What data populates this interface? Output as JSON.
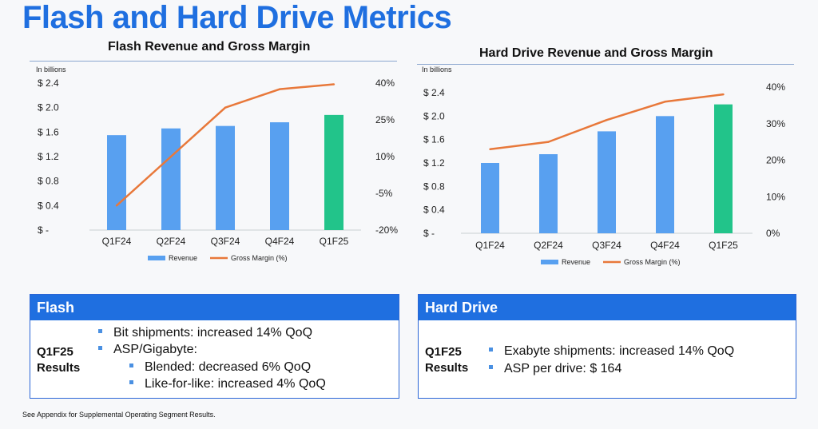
{
  "page_title": "Flash and Hard Drive Metrics",
  "footnote": "See Appendix for Supplemental Operating Segment Results.",
  "colors": {
    "revenue": "#58a0f0",
    "latest": "#22c48a",
    "margin": "#e8783a",
    "accent": "#1f6fe0"
  },
  "chart_data": [
    {
      "type": "bar",
      "title": "Flash Revenue and Gross Margin",
      "units_label": "In billions",
      "categories": [
        "Q1F24",
        "Q2F24",
        "Q3F24",
        "Q4F24",
        "Q1F25"
      ],
      "y_ticks": [
        "$ -",
        "$ 0.4",
        "$ 0.8",
        "$ 1.2",
        "$ 1.6",
        "$ 2.0",
        "$ 2.4"
      ],
      "y2_ticks": [
        "-20%",
        "-5%",
        "10%",
        "25%",
        "40%"
      ],
      "ylim": [
        0,
        2.4
      ],
      "y2lim": [
        -20,
        40
      ],
      "series": [
        {
          "name": "Revenue",
          "type": "bar",
          "values": [
            1.55,
            1.66,
            1.7,
            1.76,
            1.88
          ]
        },
        {
          "name": "Gross Margin (%)",
          "type": "line",
          "axis": "secondary",
          "values": [
            -10,
            10,
            30,
            37.5,
            39.5
          ]
        }
      ],
      "legend": [
        "Revenue",
        "Gross Margin (%)"
      ]
    },
    {
      "type": "bar",
      "title": "Hard Drive Revenue and Gross Margin",
      "units_label": "In billions",
      "categories": [
        "Q1F24",
        "Q2F24",
        "Q3F24",
        "Q4F24",
        "Q1F25"
      ],
      "y_ticks": [
        "$ -",
        "$ 0.4",
        "$ 0.8",
        "$ 1.2",
        "$ 1.6",
        "$ 2.0",
        "$ 2.4"
      ],
      "y2_ticks": [
        "0%",
        "10%",
        "20%",
        "30%",
        "40%"
      ],
      "ylim": [
        0,
        2.6
      ],
      "y2lim": [
        0,
        40
      ],
      "series": [
        {
          "name": "Revenue",
          "type": "bar",
          "values": [
            1.2,
            1.35,
            1.74,
            2.0,
            2.2
          ]
        },
        {
          "name": "Gross Margin (%)",
          "type": "line",
          "axis": "secondary",
          "values": [
            23,
            25,
            31,
            36,
            38
          ]
        }
      ],
      "legend": [
        "Revenue",
        "Gross Margin (%)"
      ]
    }
  ],
  "flash_panel": {
    "heading": "Flash",
    "results_label_1": "Q1F25",
    "results_label_2": "Results",
    "bullets": [
      "Bit shipments: increased 14% QoQ",
      "ASP/Gigabyte:",
      "Blended: decreased 6% QoQ",
      "Like-for-like: increased 4% QoQ"
    ]
  },
  "hdd_panel": {
    "heading": "Hard Drive",
    "results_label_1": "Q1F25",
    "results_label_2": "Results",
    "bullets": [
      "Exabyte shipments: increased 14% QoQ",
      "ASP per drive: $ 164"
    ]
  }
}
